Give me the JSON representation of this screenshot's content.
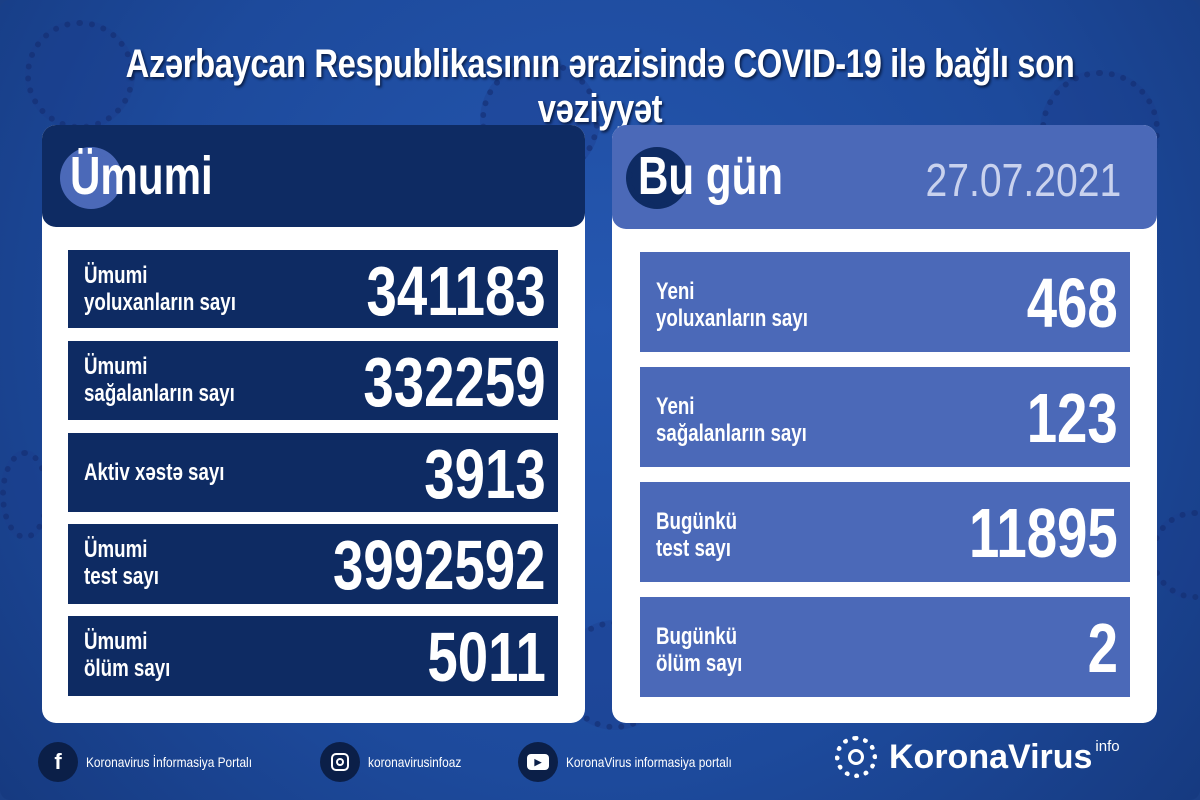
{
  "title": "Azərbaycan Respublikasının ərazisində COVID-19 ilə bağlı son vəziyyət",
  "overall": {
    "heading": "Ümumi",
    "rows": [
      {
        "label1": "Ümumi",
        "label2": "yoluxanların sayı",
        "value": "341183"
      },
      {
        "label1": "Ümumi",
        "label2": "sağalanların sayı",
        "value": "332259"
      },
      {
        "label1": "Aktiv xəstə sayı",
        "label2": "",
        "value": "3913"
      },
      {
        "label1": "Ümumi",
        "label2": "test sayı",
        "value": "3992592"
      },
      {
        "label1": "Ümumi",
        "label2": "ölüm sayı",
        "value": "5011"
      }
    ]
  },
  "today": {
    "heading": "Bu gün",
    "date": "27.07.2021",
    "rows": [
      {
        "label1": "Yeni",
        "label2": "yoluxanların sayı",
        "value": "468"
      },
      {
        "label1": "Yeni",
        "label2": "sağalanların sayı",
        "value": "123"
      },
      {
        "label1": "Bugünkü",
        "label2": "test sayı",
        "value": "11895"
      },
      {
        "label1": "Bugünkü",
        "label2": "ölüm sayı",
        "value": "2"
      }
    ]
  },
  "footer": {
    "facebook": "Koronavirus İnformasiya Portalı",
    "instagram": "koronavirusinfoaz",
    "youtube": "KoronaVirus informasiya portalı",
    "brand": "KoronaVirus",
    "brand_sup": "info"
  },
  "colors": {
    "background": "#1d4a9c",
    "navy": "#0e2b63",
    "light_blue": "#4b69b8",
    "white": "#ffffff"
  }
}
